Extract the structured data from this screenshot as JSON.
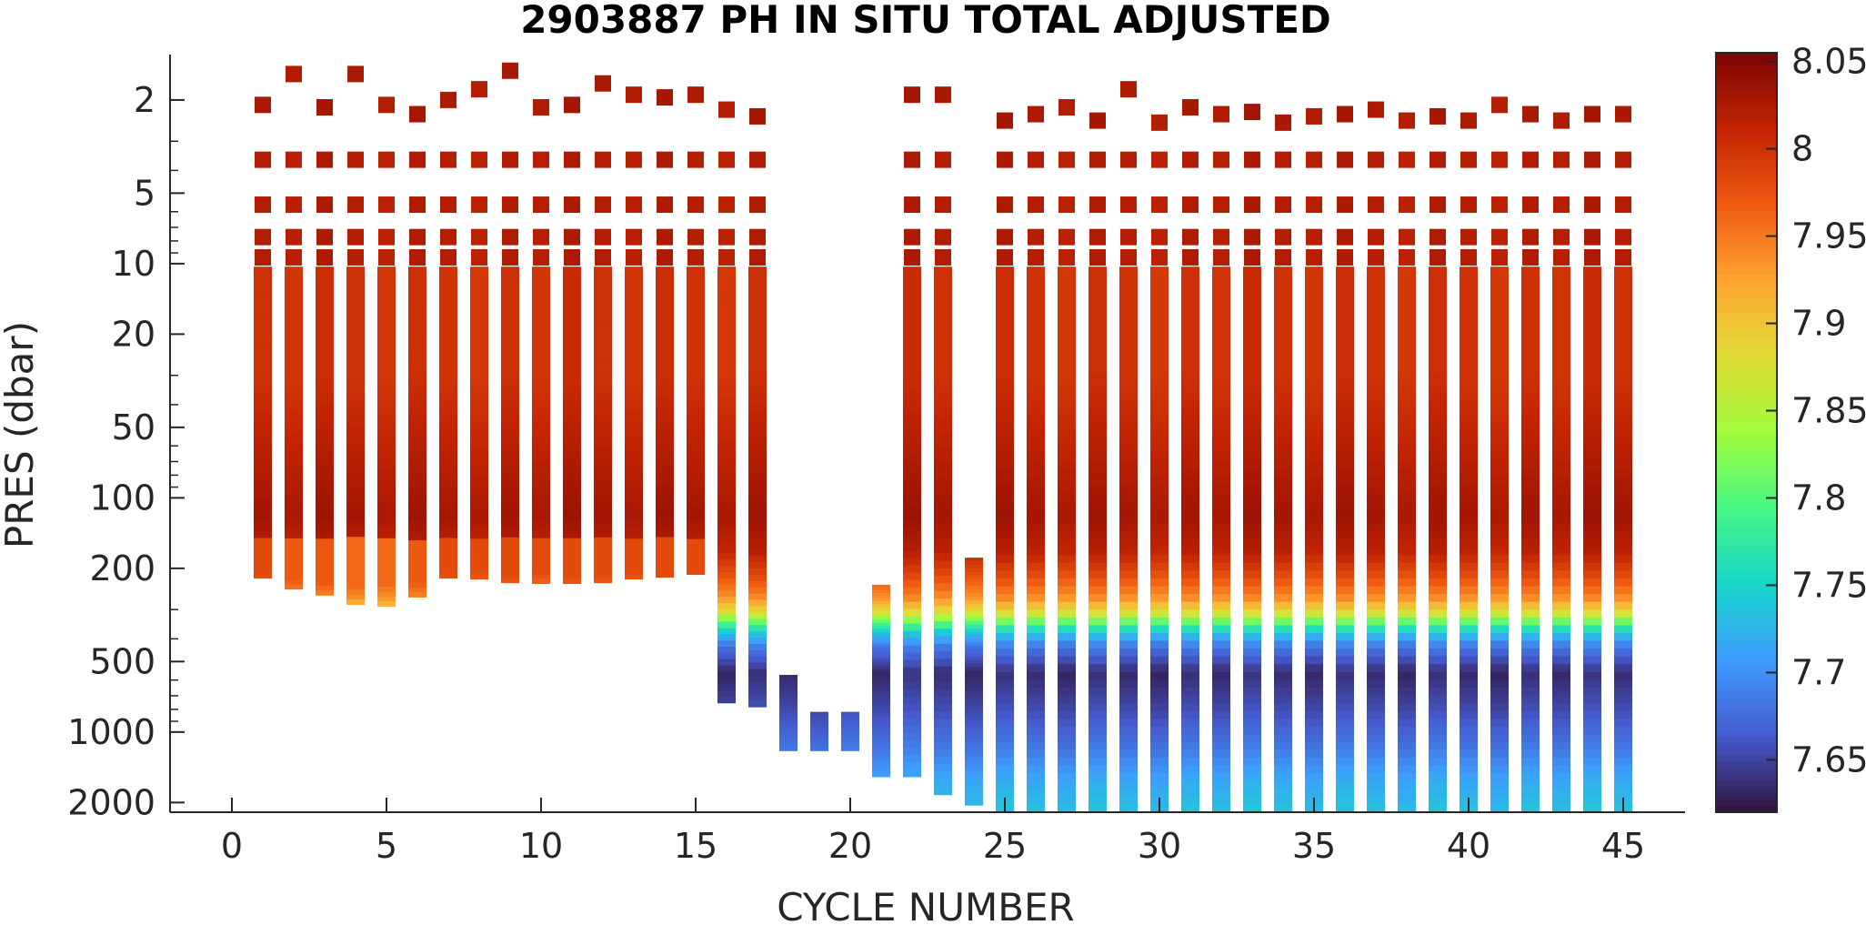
{
  "chart_data": {
    "type": "heatmap",
    "title": "2903887  PH IN SITU TOTAL ADJUSTED",
    "xlabel": "CYCLE NUMBER",
    "ylabel": "PRES (dbar)",
    "xlim": [
      -2,
      47
    ],
    "ylim": [
      2200,
      1.28
    ],
    "yscale": "log",
    "y_reversed": true,
    "x_ticks": [
      "0",
      "5",
      "10",
      "15",
      "20",
      "25",
      "30",
      "35",
      "40",
      "45"
    ],
    "y_ticks": [
      "2",
      "5",
      "10",
      "20",
      "50",
      "100",
      "200",
      "500",
      "1000",
      "2000"
    ],
    "colorbar": {
      "colormap": "turbo",
      "clim": [
        7.62,
        8.055
      ],
      "ticks": [
        "7.65",
        "7.7",
        "7.75",
        "7.8",
        "7.85",
        "7.9",
        "7.95",
        "8",
        "8.05"
      ]
    },
    "profiles": [
      {
        "cycle": 1,
        "surface_p": 2.1,
        "pmax": 220,
        "deep_ph": 7.97
      },
      {
        "cycle": 2,
        "surface_p": 1.55,
        "pmax": 245,
        "deep_ph": 7.96
      },
      {
        "cycle": 3,
        "surface_p": 2.15,
        "pmax": 260,
        "deep_ph": 7.96
      },
      {
        "cycle": 4,
        "surface_p": 1.55,
        "pmax": 285,
        "deep_ph": 7.95
      },
      {
        "cycle": 5,
        "surface_p": 2.1,
        "pmax": 290,
        "deep_ph": 7.95
      },
      {
        "cycle": 6,
        "surface_p": 2.3,
        "pmax": 265,
        "deep_ph": 7.96
      },
      {
        "cycle": 7,
        "surface_p": 2.0,
        "pmax": 220,
        "deep_ph": 7.97
      },
      {
        "cycle": 8,
        "surface_p": 1.8,
        "pmax": 222,
        "deep_ph": 7.97
      },
      {
        "cycle": 9,
        "surface_p": 1.5,
        "pmax": 230,
        "deep_ph": 7.97
      },
      {
        "cycle": 10,
        "surface_p": 2.15,
        "pmax": 232,
        "deep_ph": 7.97
      },
      {
        "cycle": 11,
        "surface_p": 2.1,
        "pmax": 232,
        "deep_ph": 7.97
      },
      {
        "cycle": 12,
        "surface_p": 1.7,
        "pmax": 230,
        "deep_ph": 7.97
      },
      {
        "cycle": 13,
        "surface_p": 1.9,
        "pmax": 222,
        "deep_ph": 7.97
      },
      {
        "cycle": 14,
        "surface_p": 1.95,
        "pmax": 218,
        "deep_ph": 7.97
      },
      {
        "cycle": 15,
        "surface_p": 1.9,
        "pmax": 212,
        "deep_ph": 7.97
      },
      {
        "cycle": 16,
        "surface_p": 2.2,
        "pmax": 750,
        "deep_ph": 7.69
      },
      {
        "cycle": 17,
        "surface_p": 2.35,
        "pmax": 780,
        "deep_ph": 7.69
      },
      {
        "cycle": 18,
        "surface_p": null,
        "pmin": 570,
        "pmax": 1200,
        "deep_ph": 7.69
      },
      {
        "cycle": 19,
        "surface_p": null,
        "pmin": 820,
        "pmax": 1200,
        "deep_ph": 7.69
      },
      {
        "cycle": 20,
        "surface_p": null,
        "pmin": 820,
        "pmax": 1200,
        "deep_ph": 7.69
      },
      {
        "cycle": 21,
        "surface_p": null,
        "pmin": 235,
        "pmax": 1550,
        "deep_ph": 7.7
      },
      {
        "cycle": 22,
        "surface_p": 1.9,
        "pmax": 1550,
        "deep_ph": 7.7
      },
      {
        "cycle": 23,
        "surface_p": 1.9,
        "pmax": 1850,
        "deep_ph": 7.71
      },
      {
        "cycle": 24,
        "surface_p": null,
        "pmin": 180,
        "pmax": 2050,
        "deep_ph": 7.73
      },
      {
        "cycle": 25,
        "surface_p": 2.45,
        "pmax": 2200,
        "deep_ph": 7.74
      },
      {
        "cycle": 26,
        "surface_p": 2.3,
        "pmax": 2200,
        "deep_ph": 7.74
      },
      {
        "cycle": 27,
        "surface_p": 2.15,
        "pmax": 2200,
        "deep_ph": 7.74
      },
      {
        "cycle": 28,
        "surface_p": 2.45,
        "pmax": 2200,
        "deep_ph": 7.74
      },
      {
        "cycle": 29,
        "surface_p": 1.8,
        "pmax": 2200,
        "deep_ph": 7.74
      },
      {
        "cycle": 30,
        "surface_p": 2.5,
        "pmax": 2200,
        "deep_ph": 7.74
      },
      {
        "cycle": 31,
        "surface_p": 2.15,
        "pmax": 2200,
        "deep_ph": 7.74
      },
      {
        "cycle": 32,
        "surface_p": 2.3,
        "pmax": 2200,
        "deep_ph": 7.74
      },
      {
        "cycle": 33,
        "surface_p": 2.25,
        "pmax": 2200,
        "deep_ph": 7.74
      },
      {
        "cycle": 34,
        "surface_p": 2.5,
        "pmax": 2200,
        "deep_ph": 7.74
      },
      {
        "cycle": 35,
        "surface_p": 2.35,
        "pmax": 2200,
        "deep_ph": 7.74
      },
      {
        "cycle": 36,
        "surface_p": 2.3,
        "pmax": 2200,
        "deep_ph": 7.74
      },
      {
        "cycle": 37,
        "surface_p": 2.2,
        "pmax": 2200,
        "deep_ph": 7.74
      },
      {
        "cycle": 38,
        "surface_p": 2.45,
        "pmax": 2200,
        "deep_ph": 7.74
      },
      {
        "cycle": 39,
        "surface_p": 2.35,
        "pmax": 2200,
        "deep_ph": 7.74
      },
      {
        "cycle": 40,
        "surface_p": 2.45,
        "pmax": 2200,
        "deep_ph": 7.74
      },
      {
        "cycle": 41,
        "surface_p": 2.1,
        "pmax": 2200,
        "deep_ph": 7.74
      },
      {
        "cycle": 42,
        "surface_p": 2.3,
        "pmax": 2200,
        "deep_ph": 7.74
      },
      {
        "cycle": 43,
        "surface_p": 2.45,
        "pmax": 2200,
        "deep_ph": 7.74
      },
      {
        "cycle": 44,
        "surface_p": 2.3,
        "pmax": 2200,
        "deep_ph": 7.74
      },
      {
        "cycle": 45,
        "surface_p": 2.3,
        "pmax": 2200,
        "deep_ph": 7.74
      }
    ],
    "upper_levels_p": [
      3.6,
      5.6,
      7.7,
      9.4
    ],
    "mid_profile": [
      {
        "p": 10,
        "ph": 8.005
      },
      {
        "p": 30,
        "ph": 8.005
      },
      {
        "p": 60,
        "ph": 8.02
      },
      {
        "p": 120,
        "ph": 8.035
      },
      {
        "p": 170,
        "ph": 8.02
      },
      {
        "p": 220,
        "ph": 7.98
      },
      {
        "p": 270,
        "ph": 7.94
      },
      {
        "p": 310,
        "ph": 7.88
      },
      {
        "p": 340,
        "ph": 7.81
      },
      {
        "p": 380,
        "ph": 7.74
      },
      {
        "p": 430,
        "ph": 7.69
      },
      {
        "p": 560,
        "ph": 7.64
      },
      {
        "p": 800,
        "ph": 7.66
      },
      {
        "p": 1200,
        "ph": 7.69
      },
      {
        "p": 1600,
        "ph": 7.72
      },
      {
        "p": 2200,
        "ph": 7.74
      }
    ]
  }
}
